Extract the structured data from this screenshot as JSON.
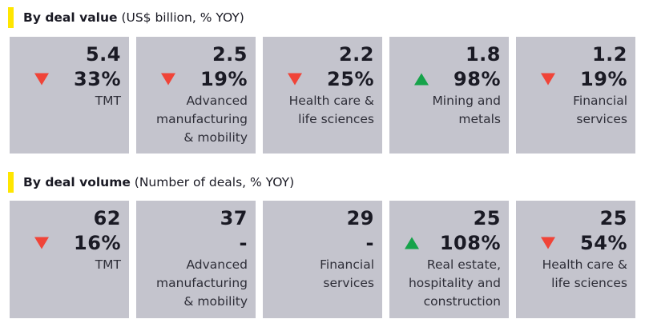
{
  "sections": [
    {
      "title_bold": "By deal value",
      "title_rest": " (US$ billion, % YOY)",
      "cards": [
        {
          "value": "5.4",
          "change": "33%",
          "direction": "down",
          "label": "TMT"
        },
        {
          "value": "2.5",
          "change": "19%",
          "direction": "down",
          "label": "Advanced manufacturing & mobility"
        },
        {
          "value": "2.2",
          "change": "25%",
          "direction": "down",
          "label": "Health care & life sciences"
        },
        {
          "value": "1.8",
          "change": "98%",
          "direction": "up",
          "label": "Mining and metals"
        },
        {
          "value": "1.2",
          "change": "19%",
          "direction": "down",
          "label": "Financial services"
        }
      ]
    },
    {
      "title_bold": "By deal volume",
      "title_rest": " (Number of deals, % YOY)",
      "cards": [
        {
          "value": "62",
          "change": "16%",
          "direction": "down",
          "label": "TMT"
        },
        {
          "value": "37",
          "change": "-",
          "direction": "none",
          "label": "Advanced manufacturing & mobility"
        },
        {
          "value": "29",
          "change": "-",
          "direction": "none",
          "label": "Financial services"
        },
        {
          "value": "25",
          "change": "108%",
          "direction": "up",
          "label": "Real estate, hospitality and construction"
        },
        {
          "value": "25",
          "change": "54%",
          "direction": "down",
          "label": "Health care & life sciences"
        }
      ]
    }
  ],
  "colors": {
    "accent": "#ffe600",
    "card_bg": "#c4c4cd",
    "down": "#f04438",
    "up": "#16a34a"
  }
}
